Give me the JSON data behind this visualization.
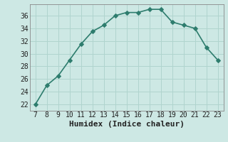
{
  "x": [
    7,
    8,
    9,
    10,
    11,
    12,
    13,
    14,
    15,
    16,
    17,
    18,
    19,
    20,
    21,
    22,
    23
  ],
  "y": [
    22,
    25,
    26.5,
    29,
    31.5,
    33.5,
    34.5,
    36,
    36.5,
    36.5,
    37,
    37,
    35,
    34.5,
    34,
    31,
    29
  ],
  "line_color": "#2e7d6e",
  "marker": "D",
  "marker_color": "#2e7d6e",
  "xlabel": "Humidex (Indice chaleur)",
  "ylabel": "",
  "title": "",
  "xlim": [
    6.5,
    23.5
  ],
  "ylim": [
    21.0,
    37.8
  ],
  "yticks": [
    22,
    24,
    26,
    28,
    30,
    32,
    34,
    36
  ],
  "xticks": [
    7,
    8,
    9,
    10,
    11,
    12,
    13,
    14,
    15,
    16,
    17,
    18,
    19,
    20,
    21,
    22,
    23
  ],
  "bg_color": "#cde8e4",
  "grid_color": "#b0d4ce",
  "font_color": "#222222",
  "xlabel_fontsize": 8,
  "tick_fontsize": 7,
  "linewidth": 1.2,
  "markersize": 3
}
